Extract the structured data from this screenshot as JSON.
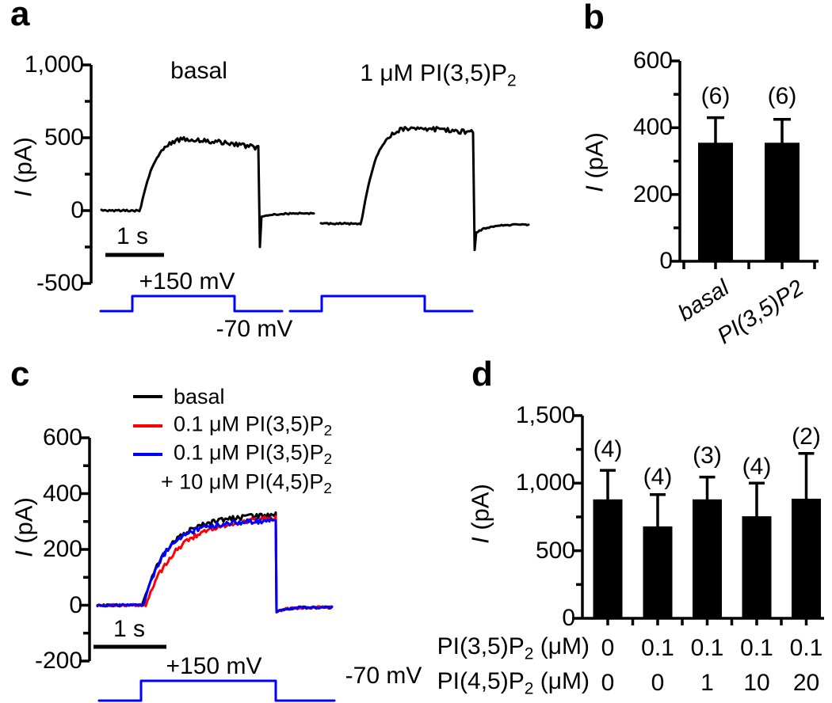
{
  "figure": {
    "background": "#ffffff"
  },
  "chart_data": [
    {
      "id": "a",
      "type": "line",
      "panel_letter": "a",
      "ylabel": "I (pA)",
      "ylabel_italic": "I",
      "ylabel_rest": " (pA)",
      "ylim": [
        -500,
        1000
      ],
      "yticks": [
        1000,
        500,
        0,
        -500
      ],
      "ytick_labels": [
        "1,000",
        "500",
        "0",
        "-500"
      ],
      "yticks_minor": [
        750,
        250,
        -250
      ],
      "scale_bar": "1 s",
      "voltage_high": "+150 mV",
      "voltage_low": "-70 mV",
      "protocol_color": "#0000ff",
      "protocol_mV": {
        "holding": -70,
        "step": 150
      },
      "sweeps": [
        {
          "title": "basal",
          "color": "#000000",
          "baseline_pA": 0,
          "peak_pA": 510,
          "end_pulse_pA": 430,
          "tail_min_pA": -250,
          "tail_end_pA": -18
        },
        {
          "title": "1 μM PI(3,5)P2",
          "title_pre": "1 μM PI(3,5)P",
          "title_sub": "2",
          "color": "#000000",
          "baseline_pA": -90,
          "peak_pA": 585,
          "end_pulse_pA": 535,
          "tail_min_pA": -270,
          "tail_end_pA": -95
        }
      ]
    },
    {
      "id": "b",
      "type": "bar",
      "panel_letter": "b",
      "ylabel": "I (pA)",
      "ylabel_italic": "I",
      "ylabel_rest": " (pA)",
      "ylim": [
        0,
        600
      ],
      "yticks": [
        0,
        200,
        400,
        600
      ],
      "ytick_labels": [
        "0",
        "200",
        "400",
        "600"
      ],
      "yticks_minor": [
        100,
        300,
        500
      ],
      "categories": [
        "basal",
        "PI(3,5)P2"
      ],
      "values": [
        355,
        355
      ],
      "error_plus": [
        75,
        70
      ],
      "n_labels": [
        "(6)",
        "(6)"
      ],
      "bar_color": "#000000"
    },
    {
      "id": "c",
      "type": "line",
      "panel_letter": "c",
      "ylabel": "I (pA)",
      "ylabel_italic": "I",
      "ylabel_rest": " (pA)",
      "ylim": [
        -200,
        600
      ],
      "yticks": [
        600,
        400,
        200,
        0,
        -200
      ],
      "ytick_labels": [
        "600",
        "400",
        "200",
        "0",
        "-200"
      ],
      "yticks_minor": [
        500,
        300,
        100,
        -100
      ],
      "scale_bar": "1 s",
      "voltage_high": "+150 mV",
      "voltage_low": "-70 mV",
      "protocol_color": "#0000ff",
      "protocol_mV": {
        "holding": -70,
        "step": 150
      },
      "legend": [
        {
          "label": "basal",
          "color": "#000000"
        },
        {
          "label": "0.1 μM PI(3,5)P2",
          "label_pre": "0.1 μM PI(3,5)P",
          "label_sub": "2",
          "color": "#ff0000"
        },
        {
          "label": "0.1 μM PI(3,5)P2 + 10 μM PI(4,5)P2",
          "label_pre": "0.1 μM PI(3,5)P",
          "label_sub": "2",
          "label2_pre": "+ 10 μM PI(4,5)P",
          "label2_sub": "2",
          "color": "#0000ff"
        }
      ],
      "traces": [
        {
          "name": "basal",
          "color": "#000000",
          "baseline_pA": 0,
          "plateau_pA": 325
        },
        {
          "name": "0.1 μM PI(3,5)P2",
          "color": "#ff0000",
          "baseline_pA": 0,
          "plateau_pA": 315
        },
        {
          "name": "0.1 μM PI(3,5)P2 + 10 μM PI(4,5)P2",
          "color": "#0000ff",
          "baseline_pA": 0,
          "plateau_pA": 305
        }
      ]
    },
    {
      "id": "d",
      "type": "bar",
      "panel_letter": "d",
      "ylabel": "I (pA)",
      "ylabel_italic": "I",
      "ylabel_rest": " (pA)",
      "ylim": [
        0,
        1500
      ],
      "yticks": [
        0,
        500,
        1000,
        1500
      ],
      "ytick_labels": [
        "0",
        "500",
        "1,000",
        "1,500"
      ],
      "yticks_minor": [
        250,
        750,
        1250
      ],
      "values": [
        880,
        680,
        880,
        755,
        885
      ],
      "error_plus": [
        215,
        235,
        165,
        245,
        335
      ],
      "n_labels": [
        "(4)",
        "(4)",
        "(3)",
        "(4)",
        "(2)"
      ],
      "bar_color": "#000000",
      "rows": [
        {
          "label": "PI(3,5)P2 (μM)",
          "label_pre": "PI(3,5)P",
          "label_sub": "2",
          "label_post": " (μM)",
          "values": [
            "0",
            "0.1",
            "0.1",
            "0.1",
            "0.1"
          ]
        },
        {
          "label": "PI(4,5)P2 (μM)",
          "label_pre": "PI(4,5)P",
          "label_sub": "2",
          "label_post": " (μM)",
          "values": [
            "0",
            "0",
            "1",
            "10",
            "20"
          ]
        }
      ]
    }
  ]
}
